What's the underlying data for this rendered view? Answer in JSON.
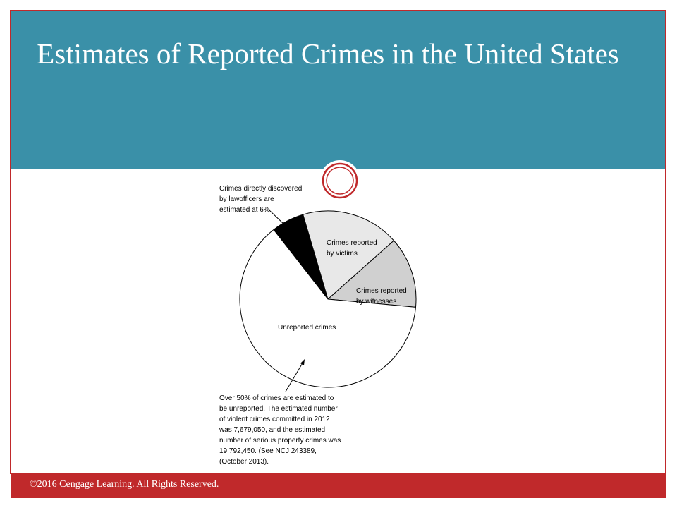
{
  "slide": {
    "title": "Estimates of Reported Crimes in the United States",
    "footer": "©2016 Cengage Learning. All Rights Reserved."
  },
  "colors": {
    "header": "#3a90a8",
    "accent": "#c0292b"
  },
  "chart_data": {
    "type": "pie",
    "title": "",
    "slices": [
      {
        "label": "Crimes directly discovered by law officers are estimated at 6%",
        "value": 6,
        "color": "#000000"
      },
      {
        "label": "Crimes reported by victims",
        "value": 18,
        "color": "#e8e8e8"
      },
      {
        "label": "Crimes reported by witnesses",
        "value": 13,
        "color": "#d0d0d0"
      },
      {
        "label": "Unreported crimes",
        "value": 63,
        "color": "#ffffff"
      }
    ],
    "annotations": {
      "police": [
        "Crimes directly discovered",
        "by lawofficers are",
        "estimated at 6%"
      ],
      "victims": [
        "Crimes reported",
        "by victims"
      ],
      "witnesses": [
        "Crimes reported",
        "by witnesses"
      ],
      "unreported": [
        "Unreported crimes"
      ],
      "note": [
        "Over 50% of crimes are estimated to",
        "be unreported. The estimated number",
        "of violent crimes committed in 2012",
        "was 7,679,050, and the estimated",
        "number of serious property crimes was",
        "19,792,450. (See NCJ 243389,",
        "(October 2013)."
      ]
    }
  }
}
